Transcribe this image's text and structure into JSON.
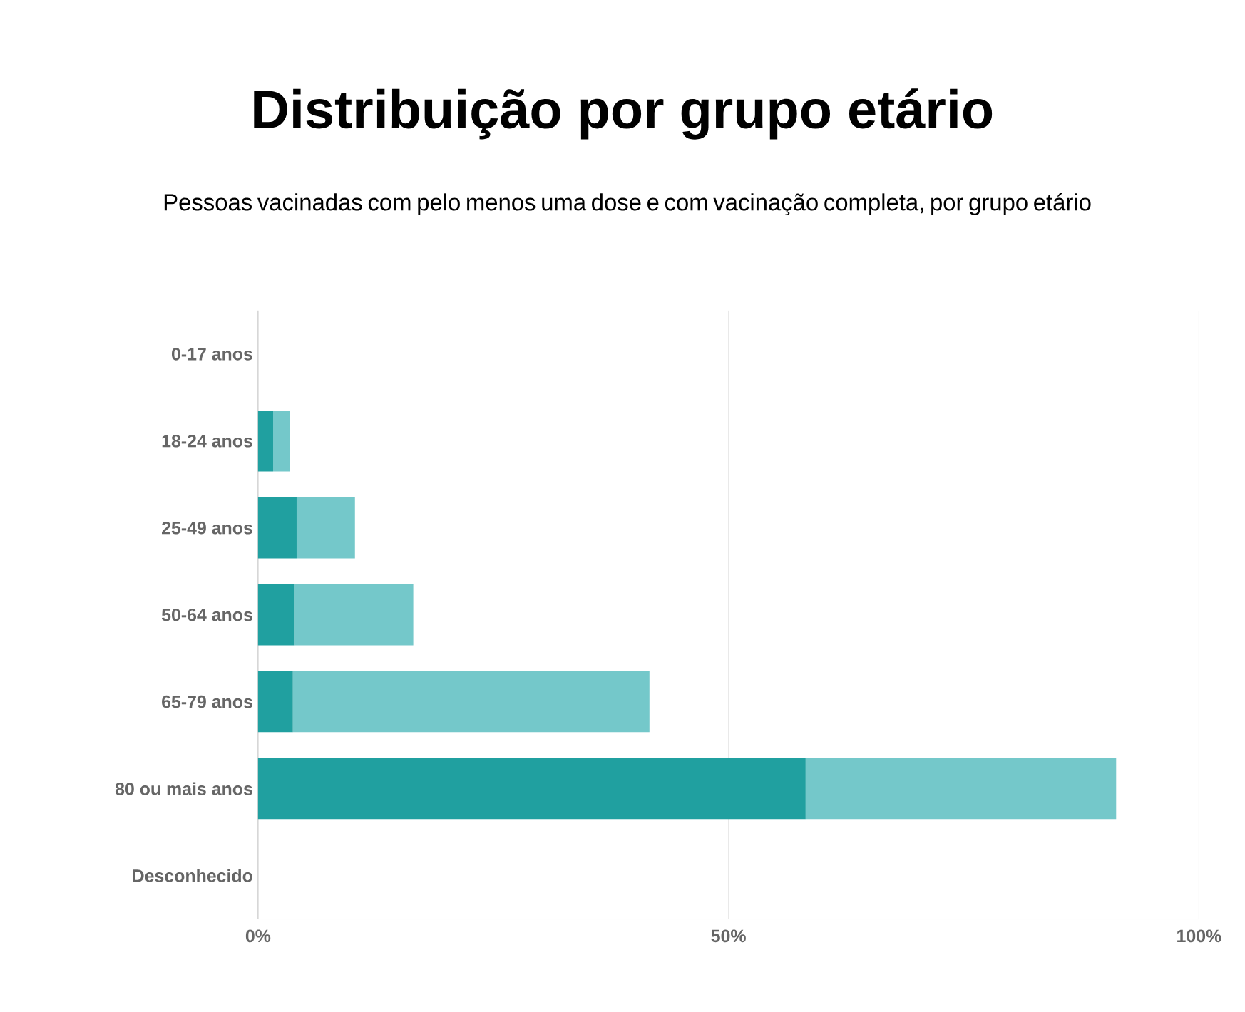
{
  "chart_data": {
    "type": "bar",
    "orientation": "horizontal",
    "stacked": true,
    "title": "Distribuição por grupo etário",
    "subtitle": "Pessoas vacinadas com pelo menos uma dose e com vacinação completa, por grupo etário",
    "categories": [
      "0-17 anos",
      "18-24 anos",
      "25-49 anos",
      "50-64 anos",
      "65-79 anos",
      "80 ou mais anos",
      "Desconhecido"
    ],
    "series": [
      {
        "color": "#20a0a0",
        "values": [
          0,
          1.6,
          4.1,
          3.9,
          3.7,
          58.2,
          0
        ]
      },
      {
        "color": "#74c8ca",
        "values": [
          0,
          1.8,
          6.2,
          12.6,
          37.9,
          33.0,
          0
        ]
      }
    ],
    "xlim": [
      0,
      100
    ],
    "xticks": [
      {
        "value": 0,
        "label": "0%"
      },
      {
        "value": 50,
        "label": "50%"
      },
      {
        "value": 100,
        "label": "100%"
      }
    ],
    "grid": "x"
  }
}
